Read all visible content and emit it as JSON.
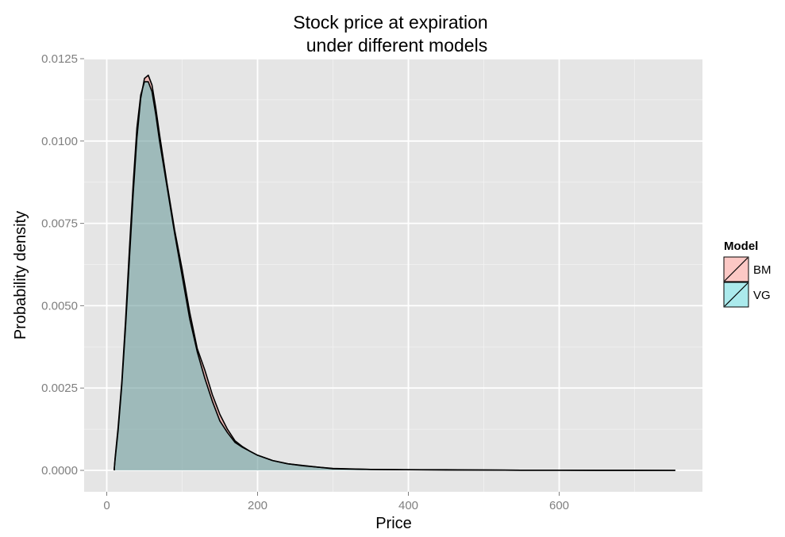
{
  "chart_data": {
    "type": "area",
    "title_line1": "Stock price at expiration",
    "title_line2": "under different models",
    "xlabel": "Price",
    "ylabel": "Probability density",
    "xlim": [
      -30,
      790
    ],
    "ylim": [
      -0.00065,
      0.0125
    ],
    "x_ticks": [
      0,
      200,
      400,
      600
    ],
    "x_tick_labels": [
      "0",
      "200",
      "400",
      "600"
    ],
    "y_ticks": [
      0,
      0.0025,
      0.005,
      0.0075,
      0.01,
      0.0125
    ],
    "y_tick_labels": [
      "0.0000",
      "0.0025",
      "0.0050",
      "0.0075",
      "0.0100",
      "0.0125"
    ],
    "grid": true,
    "legend": {
      "title": "Model",
      "position": "right"
    },
    "series": [
      {
        "name": "BM",
        "fill": "#f8766d",
        "x": [
          10,
          11,
          15,
          20,
          25,
          30,
          35,
          40,
          45,
          50,
          55,
          60,
          65,
          70,
          80,
          90,
          100,
          110,
          120,
          130,
          140,
          150,
          160,
          170,
          180,
          190,
          200,
          220,
          240,
          260,
          280,
          300,
          350,
          400,
          450,
          500,
          550,
          600,
          650,
          700,
          754
        ],
        "y": [
          5e-05,
          0.0003,
          0.0012,
          0.0026,
          0.0044,
          0.0064,
          0.0084,
          0.0101,
          0.0113,
          0.0119,
          0.012,
          0.0117,
          0.011,
          0.0102,
          0.0087,
          0.0073,
          0.0061,
          0.0048,
          0.0037,
          0.00305,
          0.0023,
          0.0017,
          0.00125,
          0.0009,
          0.00072,
          0.00058,
          0.00046,
          0.0003,
          0.0002,
          0.00014,
          0.0001,
          5e-05,
          3e-05,
          2e-05,
          1e-05,
          1e-05,
          5e-06,
          5e-06,
          3e-06,
          2e-06,
          1e-06
        ]
      },
      {
        "name": "VG",
        "fill": "#00bfc4",
        "x": [
          10,
          11,
          15,
          20,
          25,
          30,
          35,
          40,
          45,
          50,
          55,
          60,
          65,
          70,
          80,
          90,
          100,
          110,
          120,
          130,
          140,
          150,
          160,
          170,
          180,
          190,
          200,
          220,
          240,
          260,
          280,
          300,
          350,
          400,
          450,
          500,
          550,
          600,
          650,
          700,
          754
        ],
        "y": [
          5e-05,
          0.00035,
          0.0013,
          0.0027,
          0.0046,
          0.0067,
          0.0087,
          0.0104,
          0.0114,
          0.0118,
          0.0118,
          0.0115,
          0.0108,
          0.01,
          0.0086,
          0.0072,
          0.0059,
          0.0046,
          0.0036,
          0.0028,
          0.0021,
          0.0015,
          0.00115,
          0.00085,
          0.0007,
          0.00058,
          0.00046,
          0.0003,
          0.0002,
          0.00015,
          0.0001,
          6e-05,
          3e-05,
          2e-05,
          2e-05,
          1e-05,
          5e-06,
          5e-06,
          3e-06,
          2e-06,
          1e-06
        ]
      }
    ]
  }
}
